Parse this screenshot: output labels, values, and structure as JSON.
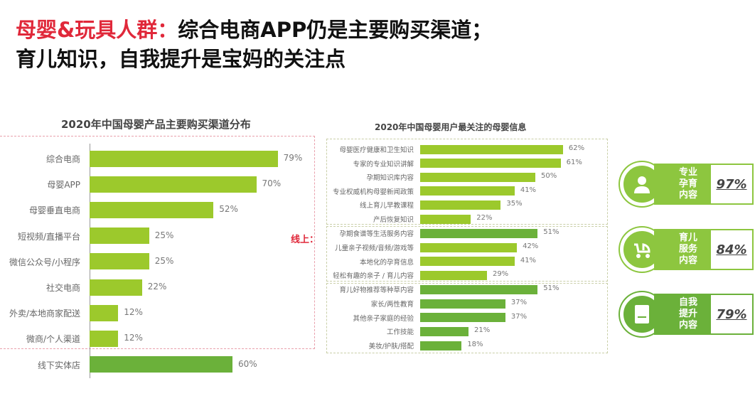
{
  "headline": {
    "line1_red": "母婴&玩具人群：",
    "line1_rest": "综合电商APP仍是主要购买渠道；",
    "line2": "育儿知识，自我提升是宝妈的关注点"
  },
  "online_label": "线上：",
  "colors": {
    "bar": "#9cc92c",
    "bar_dark": "#6bb13a",
    "accent_red": "#e0283a",
    "card_green": "#8dc63f"
  },
  "chart_data": [
    {
      "type": "bar",
      "orientation": "horizontal",
      "title": "2020年中国母婴产品主要购买渠道分布",
      "categories": [
        "综合电商",
        "母婴APP",
        "母婴垂直电商",
        "短视频/直播平台",
        "微信公众号/小程序",
        "社交电商",
        "外卖/本地商家配送",
        "微商/个人渠道",
        "线下实体店"
      ],
      "values": [
        79,
        70,
        52,
        25,
        25,
        22,
        12,
        12,
        60
      ],
      "value_labels": [
        "79%",
        "70%",
        "52%",
        "25%",
        "25%",
        "22%",
        "12%",
        "12%",
        "60%"
      ],
      "unit": "%"
    },
    {
      "type": "bar",
      "orientation": "horizontal",
      "title": "2020年中国母婴用户最关注的母婴信息",
      "categories": [
        "母婴医疗健康和卫生知识",
        "专家的专业知识讲解",
        "孕期知识库内容",
        "专业权威机构母婴新闻政策",
        "线上育儿早教课程",
        "产后恢复知识",
        "孕期食谱等生活服务内容",
        "儿童亲子视频/音频/游戏等",
        "本地化的孕育信息",
        "轻松有趣的亲子 / 育儿内容",
        "育儿好物推荐等种草内容",
        "家长/两性教育",
        "其他亲子家庭的经验",
        "工作技能",
        "美妆/护肤/搭配"
      ],
      "values": [
        62,
        61,
        50,
        41,
        35,
        22,
        51,
        42,
        41,
        29,
        51,
        37,
        37,
        21,
        18
      ],
      "value_labels": [
        "62%",
        "61%",
        "50%",
        "41%",
        "35%",
        "22%",
        "51%",
        "42%",
        "41%",
        "29%",
        "51%",
        "37%",
        "37%",
        "21%",
        "18%"
      ],
      "unit": "%"
    }
  ],
  "cards": [
    {
      "icon": "nurse-icon",
      "label": "专业\n孕育\n内容",
      "value": "97%"
    },
    {
      "icon": "stroller-icon",
      "label": "育儿\n服务\n内容",
      "value": "84%"
    },
    {
      "icon": "book-icon",
      "label": "自我\n提升\n内容",
      "value": "79%"
    }
  ]
}
